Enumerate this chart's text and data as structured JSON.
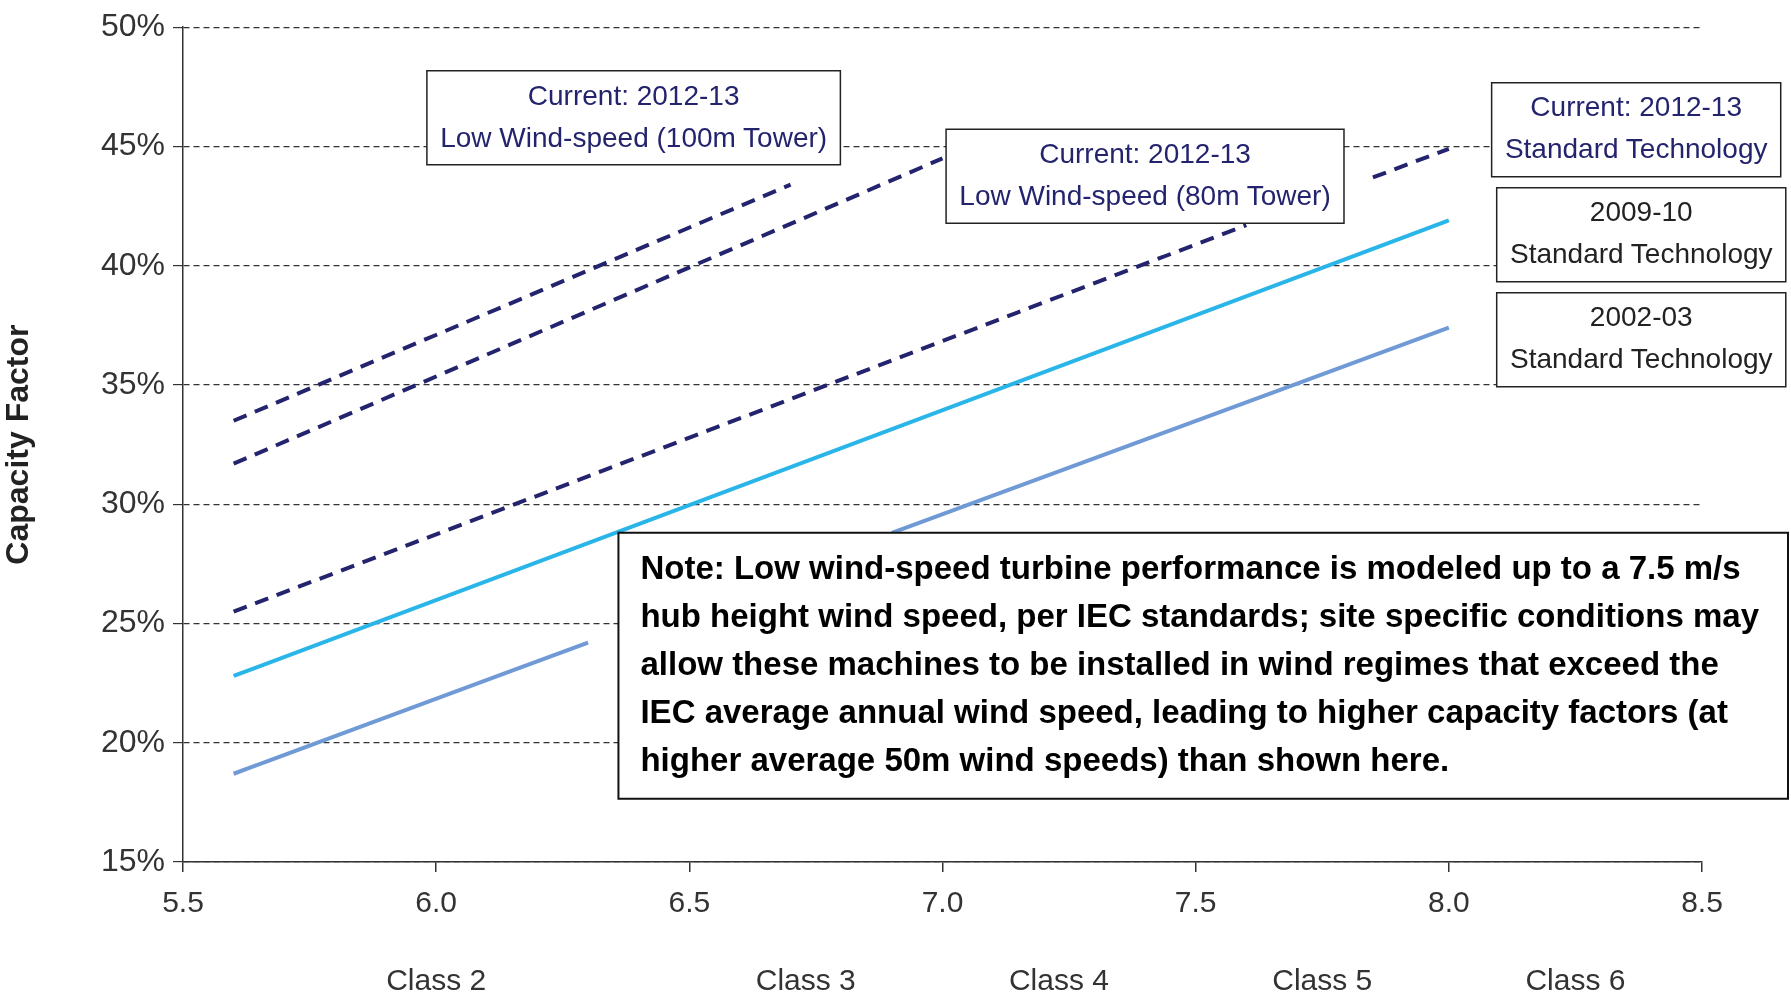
{
  "chart_data": {
    "type": "line",
    "ylabel": "Capacity Factor",
    "xlim": [
      5.5,
      8.5
    ],
    "xticks": [
      5.5,
      {
        "value": 6,
        "label": "6.0"
      },
      6.5,
      {
        "value": 7,
        "label": "7.0"
      },
      7.5,
      {
        "value": 8,
        "label": "8.0"
      },
      8.5
    ],
    "ylim": [
      15,
      50
    ],
    "yticks": [
      {
        "value": 15,
        "label": "15%"
      },
      {
        "value": 20,
        "label": "20%"
      },
      {
        "value": 25,
        "label": "25%"
      },
      {
        "value": 30,
        "label": "30%"
      },
      {
        "value": 35,
        "label": "35%"
      },
      {
        "value": 40,
        "label": "40%"
      },
      {
        "value": 45,
        "label": "45%"
      },
      {
        "value": 50,
        "label": "50%"
      }
    ],
    "grid": "y",
    "legend": false,
    "marker": "none",
    "series": [
      {
        "name": "Current: 2012-13\nLow Wind-speed (100m Tower)",
        "color": "#24246e",
        "line_style": "dashed",
        "x": [
          5.6,
          6.7
        ],
        "values": [
          33.5,
          43.4
        ]
      },
      {
        "name": "Current: 2012-13\nLow Wind-speed (80m Tower)",
        "color": "#24246e",
        "line_style": "dashed",
        "x": [
          5.6,
          7.0
        ],
        "values": [
          31.7,
          44.5
        ]
      },
      {
        "name": "Current: 2012-13\nStandard Technology",
        "color": "#24246e",
        "line_style": "dashed",
        "x": [
          5.6,
          7.6,
          null,
          7.85,
          8.0
        ],
        "values": [
          25.5,
          41.7,
          null,
          43.7,
          44.9
        ]
      },
      {
        "name": "2009-10\nStandard Technology",
        "color": "#29b5e8",
        "line_style": "solid",
        "x": [
          5.6,
          8.0
        ],
        "values": [
          22.8,
          41.9
        ]
      },
      {
        "name": "2002-03\nStandard Technology",
        "color": "#6f9ad6",
        "line_style": "solid",
        "x": [
          5.6,
          6.3,
          null,
          6.9,
          8.0
        ],
        "values": [
          18.7,
          24.2,
          null,
          28.8,
          37.4
        ]
      }
    ],
    "annotations": [
      "Note: Low wind-speed turbine performance is modeled up to a 7.5 m/s hub height wind speed, per IEC standards; site specific conditions may allow these machines to be installed in wind regimes that exceed the IEC average annual wind speed, leading to higher capacity factors (at higher average 50m wind speeds) than shown here.",
      "Class 2",
      "Class 3",
      "Class 4",
      "Class 5",
      "Class 6"
    ]
  }
}
